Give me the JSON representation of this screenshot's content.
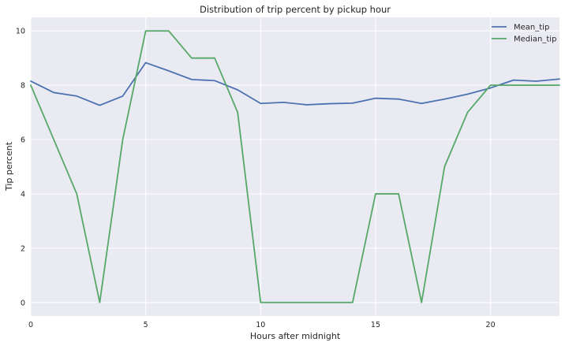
{
  "chart_data": {
    "type": "line",
    "title": "Distribution of trip percent by pickup hour",
    "xlabel": "Hours after midnight",
    "ylabel": "Tip percent",
    "xlim": [
      0,
      23
    ],
    "ylim": [
      -0.5,
      10.5
    ],
    "xticks": [
      0,
      5,
      10,
      15,
      20
    ],
    "yticks": [
      0,
      2,
      4,
      6,
      8,
      10
    ],
    "grid": true,
    "legend_position": "top-right",
    "x": [
      0,
      1,
      2,
      3,
      4,
      5,
      6,
      7,
      8,
      9,
      10,
      11,
      12,
      13,
      14,
      15,
      16,
      17,
      18,
      19,
      20,
      21,
      22,
      23
    ],
    "series": [
      {
        "name": "Mean_tip",
        "color": "#4c72b0",
        "values": [
          8.15,
          7.73,
          7.6,
          7.26,
          7.6,
          8.83,
          8.53,
          8.21,
          8.17,
          7.83,
          7.33,
          7.37,
          7.28,
          7.32,
          7.34,
          7.52,
          7.49,
          7.33,
          7.49,
          7.67,
          7.9,
          8.19,
          8.15,
          8.23
        ]
      },
      {
        "name": "Median_tip",
        "color": "#55a868",
        "values": [
          8,
          6,
          4,
          0,
          6,
          10,
          10,
          9,
          9,
          7,
          0,
          0,
          0,
          0,
          0,
          4,
          4,
          0,
          5,
          7,
          8,
          8,
          8,
          8
        ]
      }
    ]
  },
  "style": {
    "plot_background": "#eaeaf2",
    "grid_color": "#ffffff"
  }
}
